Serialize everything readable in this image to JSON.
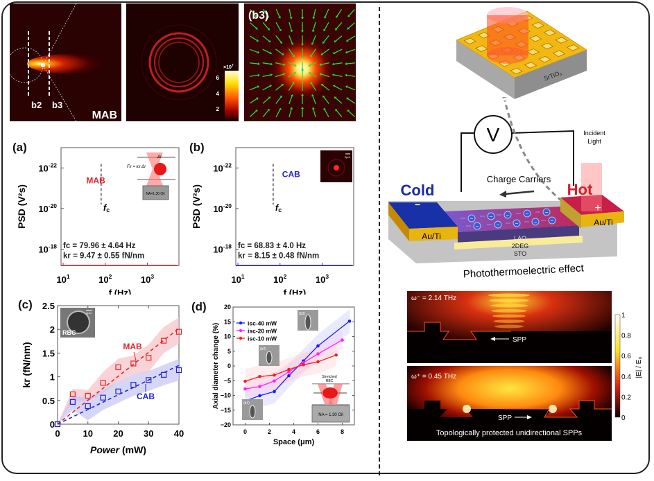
{
  "figure": {
    "left_panel": {
      "top_images": {
        "b1": {
          "label_b2": "b2",
          "label_b3": "b3",
          "beam_label": "MAB"
        },
        "b2": {
          "colorbar_exponent": "×10",
          "colorbar_exp_power": "7",
          "colorbar_ticks": [
            "6",
            "4",
            "2"
          ]
        },
        "b3": {
          "label": "(b3)"
        }
      }
    },
    "right_panel": {
      "device_top": {
        "substrate_label": "SrTiO₃"
      },
      "device_mid": {
        "voltmeter": "V",
        "incident_light": [
          "Incident",
          "Light"
        ],
        "charge_carriers": "Charge Carriers",
        "cold": "Cold",
        "hot": "Hot",
        "cold_sign": "−",
        "hot_sign": "+",
        "electrode_left": "Au/Ti",
        "electrode_right": "Au/Ti",
        "layers": [
          "LAO",
          "2DEG",
          "STO"
        ],
        "caption": "Photothermoelectric effect"
      },
      "field_maps": {
        "top_label": "ω⁻ = 2.14 THz",
        "bottom_label": "ω⁺ = 0.45 THz",
        "spp_top": "SPP",
        "spp_bottom": "SPP",
        "caption": "Topologically protected unidirectional SPPs",
        "colorbar_label": "|E| / E₀",
        "colorbar_ticks": [
          "1",
          "0.8",
          "0.6",
          "0.4",
          "0.2",
          "0"
        ]
      }
    }
  },
  "chart_data": [
    {
      "id": "a",
      "panel_label": "(a)",
      "type": "line",
      "scale": "log-log",
      "series_name": "MAB",
      "color": "#e8232a",
      "scatter_color": "#f07a7e",
      "xlabel": "f (Hz)",
      "ylabel": "PSD (V²s)",
      "xticks": [
        {
          "v": 1,
          "label": "10",
          "exp": "1"
        },
        {
          "v": 2,
          "label": "10",
          "exp": "2"
        },
        {
          "v": 3,
          "label": "10",
          "exp": "3"
        }
      ],
      "yticks": [
        {
          "v": -22,
          "label": "10",
          "exp": "-22"
        },
        {
          "v": -20,
          "label": "10",
          "exp": "-20"
        },
        {
          "v": -18,
          "label": "10",
          "exp": "-18"
        }
      ],
      "xlim_log10": [
        0.95,
        3.75
      ],
      "ylim_log10_inverted": [
        -23,
        -17.2
      ],
      "plateau_log10": -20.95,
      "fc_hz": 79.96,
      "fc_label": "fc",
      "annotation_fc": "fc = 79.96 ± 4.64 Hz",
      "annotation_kr": "kr = 9.47 ± 0.55 fN/nm",
      "inset": {
        "force_label": "Fx = κx Δr",
        "objective": "NA=1.30 Oil",
        "delta": "Δr"
      }
    },
    {
      "id": "b",
      "panel_label": "(b)",
      "type": "line",
      "scale": "log-log",
      "series_name": "CAB",
      "color": "#2323d8",
      "scatter_color": "#8c8cf0",
      "xlabel": "f (Hz)",
      "ylabel": "PSD (V²s)",
      "xticks": [
        {
          "v": 1,
          "label": "10",
          "exp": "1"
        },
        {
          "v": 2,
          "label": "10",
          "exp": "2"
        },
        {
          "v": 3,
          "label": "10",
          "exp": "3"
        }
      ],
      "yticks": [
        {
          "v": -22,
          "label": "10",
          "exp": "-22"
        },
        {
          "v": -20,
          "label": "10",
          "exp": "-20"
        },
        {
          "v": -18,
          "label": "10",
          "exp": "-18"
        }
      ],
      "xlim_log10": [
        0.95,
        3.75
      ],
      "ylim_log10_inverted": [
        -23,
        -17.2
      ],
      "plateau_log10": -21.45,
      "fc_hz": 68.83,
      "fc_label": "fc",
      "annotation_fc": "fc = 68.83 ± 4.0 Hz",
      "annotation_kr": "kr = 8.15 ± 0.48 fN/nm",
      "inset": {
        "scale_bar": "2μm"
      }
    },
    {
      "id": "c",
      "panel_label": "(c)",
      "type": "scatter",
      "xlabel": "Power (mW)",
      "ylabel": "kr (fN/nm)",
      "xlim": [
        0,
        40
      ],
      "ylim": [
        0,
        2.5
      ],
      "xticks": [
        0,
        10,
        20,
        30,
        40
      ],
      "yticks": [
        0,
        0.5,
        1,
        1.5,
        2,
        2.5
      ],
      "inset": {
        "label": "RBC",
        "scale_bar": "2μm"
      },
      "series": [
        {
          "name": "MAB",
          "color": "#e8232a",
          "x": [
            0,
            5,
            10,
            15,
            20,
            25,
            30,
            35,
            40
          ],
          "y": [
            0,
            0.63,
            0.6,
            0.87,
            1.2,
            1.28,
            1.4,
            1.76,
            1.95
          ],
          "band_low": [
            0,
            0.48,
            0.48,
            0.65,
            0.9,
            1.05,
            1.1,
            1.5,
            1.7
          ],
          "band_high": [
            0,
            0.75,
            0.72,
            1.1,
            1.38,
            1.45,
            1.68,
            2.05,
            2.25
          ],
          "fit": [
            [
              0,
              0
            ],
            [
              40,
              2.02
            ]
          ]
        },
        {
          "name": "CAB",
          "color": "#2323d8",
          "x": [
            0,
            5,
            10,
            15,
            20,
            25,
            30,
            35,
            40
          ],
          "y": [
            0,
            0.47,
            0.38,
            0.56,
            0.69,
            0.83,
            0.93,
            1.04,
            1.14
          ],
          "band_low": [
            0,
            0.3,
            0.08,
            0.3,
            0.45,
            0.6,
            0.7,
            0.82,
            0.92
          ],
          "band_high": [
            0,
            0.6,
            0.55,
            0.72,
            0.9,
            1.05,
            1.12,
            1.25,
            1.38
          ],
          "fit": [
            [
              0,
              0
            ],
            [
              40,
              1.24
            ]
          ]
        }
      ]
    },
    {
      "id": "d",
      "panel_label": "(d)",
      "type": "line",
      "xlabel": "Space (μm)",
      "ylabel": "Axial diameter change (%)",
      "xlim": [
        -1,
        9
      ],
      "ylim": [
        -20,
        20
      ],
      "xticks": [
        0,
        2,
        4,
        6,
        8
      ],
      "yticks": [
        20,
        15,
        10,
        5,
        0,
        -5,
        -10,
        -15,
        -20
      ],
      "legend_position": "top-left",
      "insets": [
        "(b1)",
        "(b2)",
        "(b3)"
      ],
      "rbc_inset": {
        "title": [
          "Stretched",
          "RBC"
        ],
        "objective": "NA = 1.30 Oil"
      },
      "series": [
        {
          "name": "isc-40 mW",
          "color": "#1a1aff",
          "x": [
            0,
            1.2,
            2.4,
            3.6,
            4.8,
            6,
            8.6
          ],
          "y": [
            -11.9,
            -10.1,
            -8.7,
            -3.3,
            1.7,
            6.8,
            15.2
          ]
        },
        {
          "name": "isc-20 mW",
          "color": "#ff22ff",
          "x": [
            0,
            1.2,
            2.4,
            3.6,
            4.8,
            6,
            8
          ],
          "y": [
            -7.8,
            -7.0,
            -5.1,
            -2.0,
            1.1,
            4.1,
            8.8
          ]
        },
        {
          "name": "isc-10 mW",
          "color": "#ff1a1a",
          "x": [
            0,
            1.2,
            2.4,
            3.6,
            4.8,
            6,
            7.5
          ],
          "y": [
            -5.2,
            -3.6,
            -3.1,
            -1.2,
            0.4,
            1.4,
            3.7
          ]
        }
      ]
    }
  ]
}
